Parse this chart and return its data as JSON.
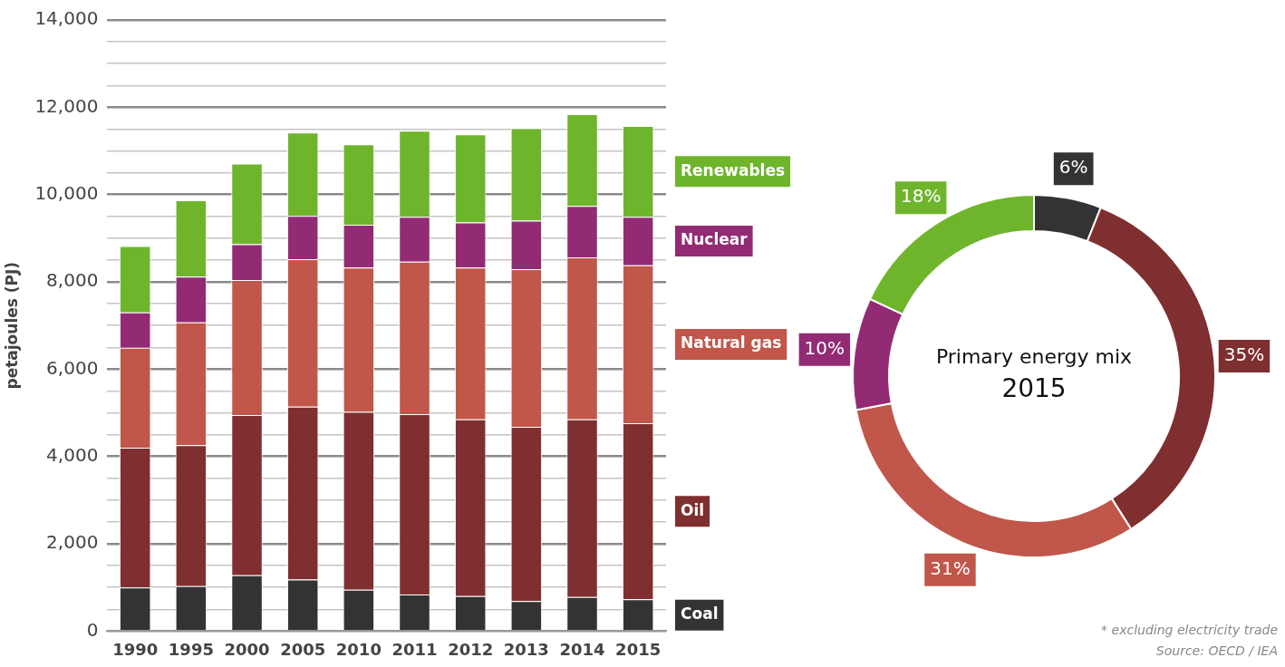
{
  "chart_data": [
    {
      "type": "bar",
      "stacked": true,
      "ylabel": "petajoules (PJ)",
      "categories": [
        "1990",
        "1995",
        "2000",
        "2005",
        "2010",
        "2011",
        "2012",
        "2013",
        "2014",
        "2015"
      ],
      "series": [
        {
          "name": "Coal",
          "color": "#333333",
          "values": [
            1000,
            1030,
            1280,
            1180,
            950,
            840,
            800,
            690,
            780,
            730
          ]
        },
        {
          "name": "Oil",
          "color": "#7f2f2f",
          "values": [
            3200,
            3230,
            3670,
            3960,
            4070,
            4130,
            4050,
            3990,
            4070,
            4030
          ]
        },
        {
          "name": "Natural gas",
          "color": "#c0574a",
          "values": [
            2290,
            2810,
            3090,
            3380,
            3310,
            3490,
            3480,
            3610,
            3710,
            3620
          ]
        },
        {
          "name": "Nuclear",
          "color": "#922b74",
          "values": [
            810,
            1050,
            820,
            990,
            980,
            1030,
            1030,
            1110,
            1180,
            1110
          ]
        },
        {
          "name": "Renewables",
          "color": "#6fb52c",
          "values": [
            1520,
            1750,
            1850,
            1910,
            1840,
            1970,
            2020,
            2120,
            2100,
            2080
          ]
        }
      ],
      "ylim": [
        0,
        14000
      ],
      "yticks": [
        0,
        {
          "value": 500,
          "label": null
        },
        {
          "value": 1000,
          "label": null
        },
        {
          "value": 1500,
          "label": null
        },
        {
          "value": 2000,
          "label": "2,000"
        },
        {
          "value": 2500,
          "label": null
        },
        {
          "value": 3000,
          "label": null
        },
        {
          "value": 3500,
          "label": null
        },
        {
          "value": 4000,
          "label": "4,000"
        },
        {
          "value": 4500,
          "label": null
        },
        {
          "value": 5000,
          "label": null
        },
        {
          "value": 5500,
          "label": null
        },
        {
          "value": 6000,
          "label": "6,000"
        },
        {
          "value": 6500,
          "label": null
        },
        {
          "value": 7000,
          "label": null
        },
        {
          "value": 7500,
          "label": null
        },
        {
          "value": 8000,
          "label": "8,000"
        },
        {
          "value": 8500,
          "label": null
        },
        {
          "value": 9000,
          "label": null
        },
        {
          "value": 9500,
          "label": null
        },
        {
          "value": 10000,
          "label": "10,000"
        },
        {
          "value": 10500,
          "label": null
        },
        {
          "value": 11000,
          "label": null
        },
        {
          "value": 11500,
          "label": null
        },
        {
          "value": 12000,
          "label": "12,000"
        },
        {
          "value": 12500,
          "label": null
        },
        {
          "value": 13000,
          "label": null
        },
        {
          "value": 13500,
          "label": null
        },
        {
          "value": 14000,
          "label": "14,000"
        }
      ],
      "grid": "y",
      "legend": "right"
    },
    {
      "type": "donut",
      "title": "Primary energy mix",
      "subtitle": "2015",
      "categories": [
        null,
        null,
        null,
        null,
        null
      ],
      "values": [
        6,
        35,
        31,
        10,
        18
      ],
      "colors": [
        "#333333",
        "#7f2f2f",
        "#c0574a",
        "#922b74",
        "#6fb52c"
      ],
      "value_labels": [
        "6%",
        "35%",
        "31%",
        "10%",
        "18%"
      ],
      "annotations": [
        "* excluding electricity trade",
        "Source: OECD / IEA"
      ]
    }
  ]
}
